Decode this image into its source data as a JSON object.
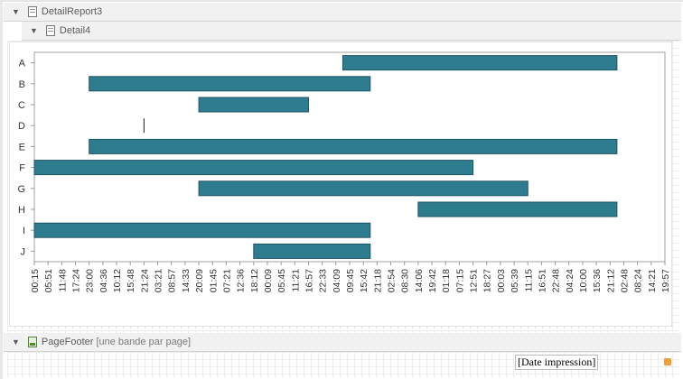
{
  "bands": {
    "detail_report": {
      "label": "DetailReport3"
    },
    "detail": {
      "label": "Detail4"
    },
    "page_footer": {
      "label": "PageFooter",
      "sub": "[une bande par page]"
    }
  },
  "footer_field": {
    "text": "[Date impression]"
  },
  "colors": {
    "bar": "#2e7d8e",
    "bar_stroke": "#1f5563",
    "band_bg": "#f1f1f1"
  },
  "chart_data": {
    "type": "bar",
    "orientation": "horizontal-range",
    "categories": [
      "A",
      "B",
      "C",
      "D",
      "E",
      "F",
      "G",
      "H",
      "I",
      "J"
    ],
    "x_tick_labels": [
      "00:15",
      "05:51",
      "11:48",
      "17:24",
      "23:00",
      "04:36",
      "10:12",
      "15:48",
      "21:24",
      "03:21",
      "08:57",
      "14:33",
      "20:09",
      "01:45",
      "07:21",
      "12:36",
      "18:12",
      "00:09",
      "05:45",
      "11:21",
      "16:57",
      "22:33",
      "04:09",
      "09:45",
      "15:42",
      "21:18",
      "02:54",
      "08:30",
      "14:06",
      "19:42",
      "01:18",
      "07:15",
      "12:51",
      "18:27",
      "00:03",
      "05:39",
      "11:15",
      "16:51",
      "22:48",
      "04:24",
      "10:00",
      "15:36",
      "21:12",
      "02:48",
      "08:24",
      "14:21",
      "19:57"
    ],
    "ranges": [
      {
        "category": "A",
        "start": 22.5,
        "end": 42.5
      },
      {
        "category": "B",
        "start": 4.0,
        "end": 24.5
      },
      {
        "category": "C",
        "start": 12.0,
        "end": 20.0
      },
      {
        "category": "D",
        "start": 8.0,
        "end": 8.0
      },
      {
        "category": "E",
        "start": 4.0,
        "end": 42.5
      },
      {
        "category": "F",
        "start": 0.0,
        "end": 32.0
      },
      {
        "category": "G",
        "start": 12.0,
        "end": 36.0
      },
      {
        "category": "H",
        "start": 28.0,
        "end": 42.5
      },
      {
        "category": "I",
        "start": 0.0,
        "end": 24.5
      },
      {
        "category": "J",
        "start": 16.0,
        "end": 24.5
      }
    ],
    "xlim": [
      0,
      46
    ],
    "grid": false,
    "legend": "none"
  }
}
